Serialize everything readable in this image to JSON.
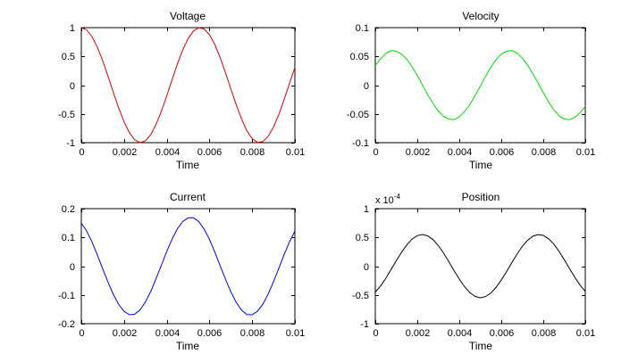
{
  "figure": {
    "background": "#ffffff",
    "axes_color": "#000000"
  },
  "chart_data": [
    {
      "type": "line",
      "title": "Voltage",
      "xlabel": "Time",
      "ylabel": "",
      "grid": false,
      "legend": null,
      "xlim": [
        0,
        0.01
      ],
      "ylim": [
        -1,
        1
      ],
      "xticks": [
        0,
        0.002,
        0.004,
        0.006,
        0.008,
        0.01
      ],
      "xtick_labels": [
        "0",
        "0.002",
        "0.004",
        "0.006",
        "0.008",
        "0.01"
      ],
      "yticks": [
        -1,
        -0.5,
        0,
        0.5,
        1
      ],
      "ytick_labels": [
        "-1",
        "-0.5",
        "0",
        "0.5",
        "1"
      ],
      "x": [
        0,
        0.00025,
        0.0005,
        0.00075,
        0.001,
        0.00125,
        0.0015,
        0.00175,
        0.002,
        0.00225,
        0.0025,
        0.00275,
        0.003,
        0.00325,
        0.0035,
        0.00375,
        0.004,
        0.00425,
        0.0045,
        0.00475,
        0.005,
        0.00525,
        0.0055,
        0.00575,
        0.006,
        0.00625,
        0.0065,
        0.00675,
        0.007,
        0.00725,
        0.0075,
        0.00775,
        0.008,
        0.00825,
        0.0085,
        0.00875,
        0.009,
        0.00925,
        0.0095,
        0.00975,
        0.01
      ],
      "series": [
        {
          "name": "Voltage",
          "color": "#dd0000",
          "values": [
            1,
            0.96,
            0.844,
            0.661,
            0.426,
            0.156,
            -0.125,
            -0.397,
            -0.637,
            -0.827,
            -0.951,
            -1,
            -0.969,
            -0.86,
            -0.684,
            -0.454,
            -0.187,
            0.094,
            0.368,
            0.613,
            0.809,
            0.941,
            0.998,
            0.976,
            0.876,
            0.707,
            0.482,
            0.218,
            -0.063,
            -0.339,
            -0.588,
            -0.79,
            -0.93,
            -0.996,
            -0.982,
            -0.891,
            -0.729,
            -0.509,
            -0.249,
            0.031,
            0.309
          ]
        }
      ]
    },
    {
      "type": "line",
      "title": "Velocity",
      "xlabel": "Time",
      "ylabel": "",
      "grid": false,
      "legend": null,
      "xlim": [
        0,
        0.01
      ],
      "ylim": [
        -0.1,
        0.1
      ],
      "xticks": [
        0,
        0.002,
        0.004,
        0.006,
        0.008,
        0.01
      ],
      "xtick_labels": [
        "0",
        "0.002",
        "0.004",
        "0.006",
        "0.008",
        "0.01"
      ],
      "yticks": [
        -0.1,
        -0.05,
        0,
        0.05,
        0.1
      ],
      "ytick_labels": [
        "-0.1",
        "-0.05",
        "0",
        "0.05",
        "0.1"
      ],
      "x": [
        0,
        0.00025,
        0.0005,
        0.00075,
        0.001,
        0.00125,
        0.0015,
        0.00175,
        0.002,
        0.00225,
        0.0025,
        0.00275,
        0.003,
        0.00325,
        0.0035,
        0.00375,
        0.004,
        0.00425,
        0.0045,
        0.00475,
        0.005,
        0.00525,
        0.0055,
        0.00575,
        0.006,
        0.00625,
        0.0065,
        0.00675,
        0.007,
        0.00725,
        0.0075,
        0.00775,
        0.008,
        0.00825,
        0.0085,
        0.00875,
        0.009,
        0.00925,
        0.0095,
        0.00975,
        0.01
      ],
      "series": [
        {
          "name": "Velocity",
          "color": "#00dd00",
          "values": [
            0.034,
            0.046,
            0.055,
            0.06,
            0.059,
            0.054,
            0.045,
            0.032,
            0.017,
            0,
            -0.017,
            -0.032,
            -0.045,
            -0.054,
            -0.059,
            -0.06,
            -0.055,
            -0.046,
            -0.034,
            -0.018,
            -0.002,
            0.015,
            0.031,
            0.044,
            0.054,
            0.059,
            0.06,
            0.056,
            0.047,
            0.035,
            0.02,
            0.004,
            -0.013,
            -0.029,
            -0.043,
            -0.053,
            -0.059,
            -0.06,
            -0.056,
            -0.048,
            -0.037
          ]
        }
      ]
    },
    {
      "type": "line",
      "title": "Current",
      "xlabel": "Time",
      "ylabel": "",
      "grid": false,
      "legend": null,
      "xlim": [
        0,
        0.01
      ],
      "ylim": [
        -0.2,
        0.2
      ],
      "xticks": [
        0,
        0.002,
        0.004,
        0.006,
        0.008,
        0.01
      ],
      "xtick_labels": [
        "0",
        "0.002",
        "0.004",
        "0.006",
        "0.008",
        "0.01"
      ],
      "yticks": [
        -0.2,
        -0.1,
        0,
        0.1,
        0.2
      ],
      "ytick_labels": [
        "-0.2",
        "-0.1",
        "0",
        "0.1",
        "0.2"
      ],
      "x": [
        0,
        0.00025,
        0.0005,
        0.00075,
        0.001,
        0.00125,
        0.0015,
        0.00175,
        0.002,
        0.00225,
        0.0025,
        0.00275,
        0.003,
        0.00325,
        0.0035,
        0.00375,
        0.004,
        0.00425,
        0.0045,
        0.00475,
        0.005,
        0.00525,
        0.0055,
        0.00575,
        0.006,
        0.00625,
        0.0065,
        0.00675,
        0.007,
        0.00725,
        0.0075,
        0.00775,
        0.008,
        0.00825,
        0.0085,
        0.00875,
        0.009,
        0.00925,
        0.0095,
        0.00975,
        0.01
      ],
      "series": [
        {
          "name": "Current",
          "color": "#0000dd",
          "values": [
            0.15,
            0.122,
            0.084,
            0.039,
            -0.009,
            -0.056,
            -0.098,
            -0.133,
            -0.157,
            -0.169,
            -0.167,
            -0.152,
            -0.125,
            -0.088,
            -0.044,
            0.003,
            0.051,
            0.094,
            0.13,
            0.155,
            0.168,
            0.168,
            0.155,
            0.129,
            0.093,
            0.049,
            0.002,
            -0.045,
            -0.089,
            -0.126,
            -0.153,
            -0.168,
            -0.169,
            -0.157,
            -0.132,
            -0.097,
            -0.054,
            -0.007,
            0.04,
            0.085,
            0.122
          ]
        }
      ]
    },
    {
      "type": "line",
      "title": "Position",
      "xlabel": "Time",
      "ylabel": "",
      "grid": false,
      "legend": null,
      "y_exponent": {
        "prefix": "x 10",
        "power": "-4"
      },
      "xlim": [
        0,
        0.01
      ],
      "ylim": [
        -1,
        1
      ],
      "xticks": [
        0,
        0.002,
        0.004,
        0.006,
        0.008,
        0.01
      ],
      "xtick_labels": [
        "0",
        "0.002",
        "0.004",
        "0.006",
        "0.008",
        "0.01"
      ],
      "yticks": [
        -1,
        -0.5,
        0,
        0.5,
        1
      ],
      "ytick_labels": [
        "-1",
        "-0.5",
        "0",
        "0.5",
        "1"
      ],
      "x": [
        0,
        0.00025,
        0.0005,
        0.00075,
        0.001,
        0.00125,
        0.0015,
        0.00175,
        0.002,
        0.00225,
        0.0025,
        0.00275,
        0.003,
        0.00325,
        0.0035,
        0.00375,
        0.004,
        0.00425,
        0.0045,
        0.00475,
        0.005,
        0.00525,
        0.0055,
        0.00575,
        0.006,
        0.00625,
        0.0065,
        0.00675,
        0.007,
        0.00725,
        0.0075,
        0.00775,
        0.008,
        0.00825,
        0.0085,
        0.00875,
        0.009,
        0.00925,
        0.0095,
        0.00975,
        0.01
      ],
      "series": [
        {
          "name": "Position",
          "color": "#000000",
          "values": [
            -0.45,
            -0.345,
            -0.211,
            -0.061,
            0.094,
            0.241,
            0.37,
            0.469,
            0.53,
            0.55,
            0.526,
            0.46,
            0.358,
            0.227,
            0.078,
            -0.077,
            -0.225,
            -0.356,
            -0.459,
            -0.525,
            -0.55,
            -0.531,
            -0.47,
            -0.371,
            -0.242,
            -0.095,
            0.059,
            0.21,
            0.343,
            0.449,
            0.52,
            0.549,
            0.535,
            0.478,
            0.383,
            0.258,
            0.112,
            -0.042,
            -0.194,
            -0.329,
            -0.439
          ]
        }
      ]
    }
  ]
}
